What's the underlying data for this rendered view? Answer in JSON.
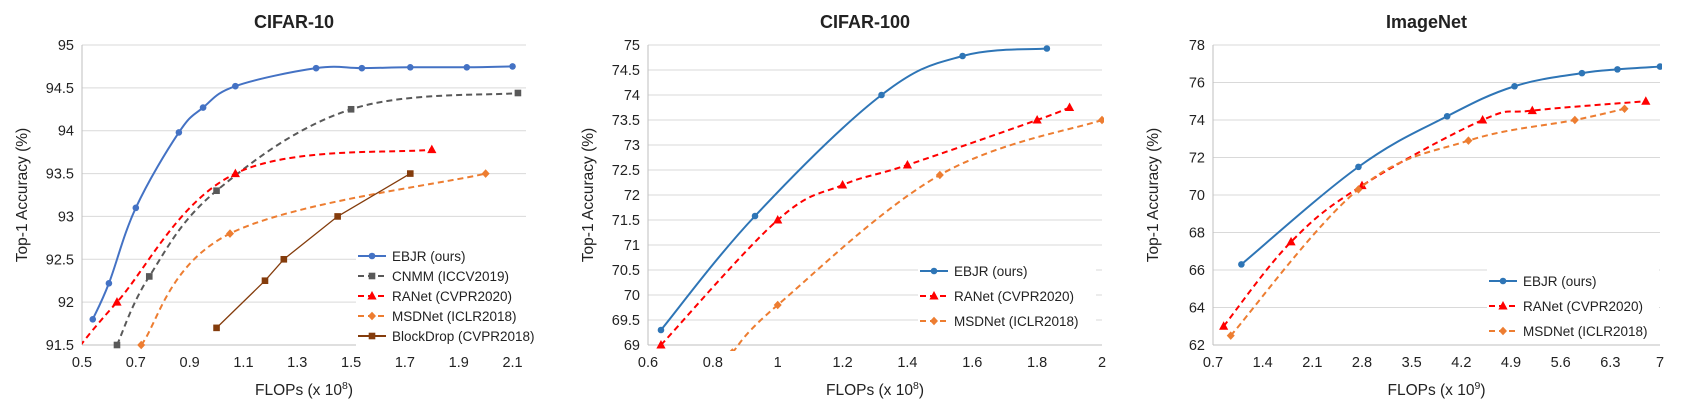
{
  "chart_data": [
    {
      "type": "line",
      "title": "CIFAR-10",
      "xlabel": "FLOPs (x 10",
      "xlabel_sup": "8",
      "xlabel_end": ")",
      "ylabel": "Top-1 Accuracy (%)",
      "xlim": [
        0.5,
        2.15
      ],
      "ylim": [
        91.5,
        95
      ],
      "xticks": [
        "0.5",
        "0.7",
        "0.9",
        "1.1",
        "1.3",
        "1.5",
        "1.7",
        "1.9",
        "2.1"
      ],
      "yticks": [
        "91.5",
        "92",
        "92.5",
        "93",
        "93.5",
        "94",
        "94.5",
        "95"
      ],
      "grid": "horizontal",
      "legend_position": "bottom-right",
      "series": [
        {
          "name": "EBJR (ours)",
          "color": "#4472C4",
          "style": "solid",
          "marker": "circle",
          "x": [
            0.54,
            0.6,
            0.7,
            0.86,
            0.95,
            1.07,
            1.37,
            1.54,
            1.72,
            1.93,
            2.1
          ],
          "y": [
            91.8,
            92.22,
            93.1,
            93.98,
            94.27,
            94.52,
            94.73,
            94.73,
            94.74,
            94.74,
            94.75
          ]
        },
        {
          "name": "CNMM (ICCV2019)",
          "color": "#595959",
          "style": "dashed",
          "marker": "square",
          "x": [
            0.63,
            0.75,
            1.0,
            1.5,
            2.12
          ],
          "y": [
            91.5,
            92.3,
            93.3,
            94.25,
            94.44
          ]
        },
        {
          "name": "RANet (CVPR2020)",
          "color": "#FF0000",
          "style": "dashed",
          "marker": "triangle",
          "x": [
            0.47,
            0.63,
            1.07,
            1.8
          ],
          "y": [
            91.4,
            92.0,
            93.5,
            93.78
          ]
        },
        {
          "name": "MSDNet (ICLR2018)",
          "color": "#ED7D31",
          "style": "dashed",
          "marker": "diamond",
          "x": [
            0.72,
            1.05,
            2.0
          ],
          "y": [
            91.5,
            92.8,
            93.5
          ]
        },
        {
          "name": "BlockDrop (CVPR2018)",
          "color": "#843C0C",
          "style": "solid",
          "marker": "square",
          "x": [
            1.0,
            1.18,
            1.25,
            1.45,
            1.72
          ],
          "y": [
            91.7,
            92.25,
            92.5,
            93.0,
            93.5
          ]
        }
      ]
    },
    {
      "type": "line",
      "title": "CIFAR-100",
      "xlabel": "FLOPs (x 10",
      "xlabel_sup": "8",
      "xlabel_end": ")",
      "ylabel": "Top-1 Accuracy (%)",
      "xlim": [
        0.6,
        2.0
      ],
      "ylim": [
        69,
        75
      ],
      "xticks": [
        "0.6",
        "0.8",
        "1",
        "1.2",
        "1.4",
        "1.6",
        "1.8",
        "2"
      ],
      "yticks": [
        "69",
        "69.5",
        "70",
        "70.5",
        "71",
        "71.5",
        "72",
        "72.5",
        "73",
        "73.5",
        "74",
        "74.5",
        "75"
      ],
      "grid": "horizontal",
      "legend_position": "bottom-right",
      "series": [
        {
          "name": "EBJR (ours)",
          "color": "#2E75B6",
          "style": "solid",
          "marker": "circle",
          "x": [
            0.64,
            0.93,
            1.32,
            1.57,
            1.83
          ],
          "y": [
            69.3,
            71.58,
            74.0,
            74.78,
            74.93
          ]
        },
        {
          "name": "RANet (CVPR2020)",
          "color": "#FF0000",
          "style": "dashed",
          "marker": "triangle",
          "x": [
            0.64,
            1.0,
            1.2,
            1.4,
            1.8,
            1.9
          ],
          "y": [
            69.0,
            71.5,
            72.2,
            72.6,
            73.5,
            73.75
          ]
        },
        {
          "name": "MSDNet (ICLR2018)",
          "color": "#ED7D31",
          "style": "dashed",
          "marker": "diamond",
          "x": [
            0.86,
            1.0,
            1.5,
            2.0
          ],
          "y": [
            68.85,
            69.8,
            72.4,
            73.5
          ]
        }
      ]
    },
    {
      "type": "line",
      "title": "ImageNet",
      "xlabel": "FLOPs (x 10",
      "xlabel_sup": "9",
      "xlabel_end": ")",
      "ylabel": "Top-1 Accuracy (%)",
      "xlim": [
        0.7,
        7.0
      ],
      "ylim": [
        62,
        78
      ],
      "xticks": [
        "0.7",
        "1.4",
        "2.1",
        "2.8",
        "3.5",
        "4.2",
        "4.9",
        "5.6",
        "6.3",
        "7"
      ],
      "yticks": [
        "62",
        "64",
        "66",
        "68",
        "70",
        "72",
        "74",
        "76",
        "78"
      ],
      "grid": "horizontal",
      "legend_position": "bottom-right",
      "series": [
        {
          "name": "EBJR (ours)",
          "color": "#2E75B6",
          "style": "solid",
          "marker": "circle",
          "x": [
            1.1,
            2.75,
            4.0,
            4.95,
            5.9,
            6.4,
            7.0
          ],
          "y": [
            66.3,
            71.5,
            74.2,
            75.8,
            76.5,
            76.7,
            76.85
          ]
        },
        {
          "name": "RANet (CVPR2020)",
          "color": "#FF0000",
          "style": "dashed",
          "marker": "triangle",
          "x": [
            0.85,
            1.8,
            2.8,
            4.5,
            5.2,
            6.8
          ],
          "y": [
            63.0,
            67.5,
            70.5,
            74.0,
            74.5,
            75.0
          ]
        },
        {
          "name": "MSDNet (ICLR2018)",
          "color": "#ED7D31",
          "style": "dashed",
          "marker": "diamond",
          "x": [
            0.95,
            2.75,
            4.3,
            5.8,
            6.5
          ],
          "y": [
            62.5,
            70.3,
            72.9,
            74.0,
            74.6
          ]
        }
      ]
    }
  ]
}
